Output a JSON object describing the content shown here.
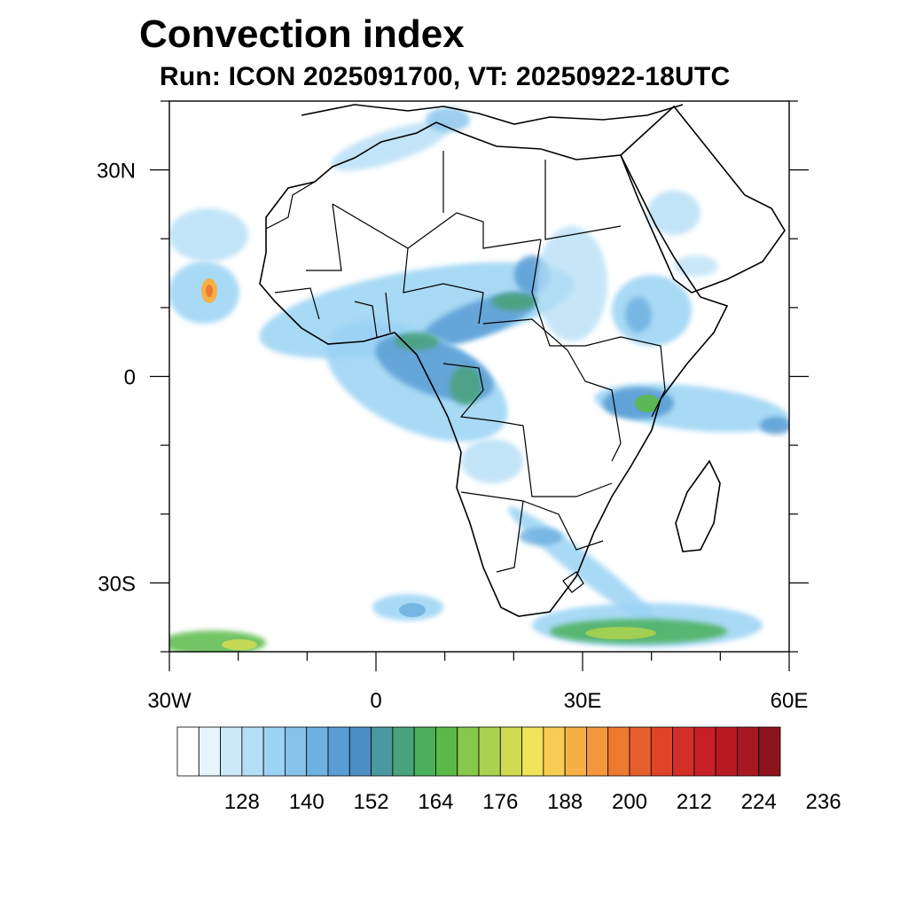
{
  "title": "Convection index",
  "subtitle": "Run: ICON 2025091700,  VT: 20250922-18UTC",
  "map": {
    "lon_range": [
      -30,
      60
    ],
    "lat_range": [
      -40,
      40
    ],
    "x_ticks": [
      {
        "value": -30,
        "label": "30W"
      },
      {
        "value": 0,
        "label": "0"
      },
      {
        "value": 30,
        "label": "30E"
      },
      {
        "value": 60,
        "label": "60E"
      }
    ],
    "y_ticks": [
      {
        "value": 30,
        "label": "30N"
      },
      {
        "value": 0,
        "label": "0"
      },
      {
        "value": -30,
        "label": "30S"
      }
    ]
  },
  "colorbar": {
    "colors": [
      "#ffffff",
      "#e6f4fb",
      "#cce9f8",
      "#b4def6",
      "#9ad3f4",
      "#85c3ea",
      "#6fb1e0",
      "#5a9dd4",
      "#4a8fc2",
      "#4a99a0",
      "#48a27a",
      "#4ab05a",
      "#5aba48",
      "#85c84a",
      "#aad24e",
      "#cfdc52",
      "#f0e45a",
      "#f6cc52",
      "#f6b046",
      "#f4963c",
      "#ee7a32",
      "#e65e2c",
      "#de4428",
      "#d42e28",
      "#c81e26",
      "#b81a24",
      "#a81822",
      "#8c141c"
    ],
    "labels": [
      "128",
      "140",
      "152",
      "164",
      "176",
      "188",
      "200",
      "212",
      "224",
      "236"
    ]
  },
  "features": {
    "coastline_color": "#000000",
    "low_color": "#9ad3f4",
    "mid_color": "#4a99a0",
    "high_color": "#cfdc52",
    "peak_color": "#ee7a32"
  }
}
